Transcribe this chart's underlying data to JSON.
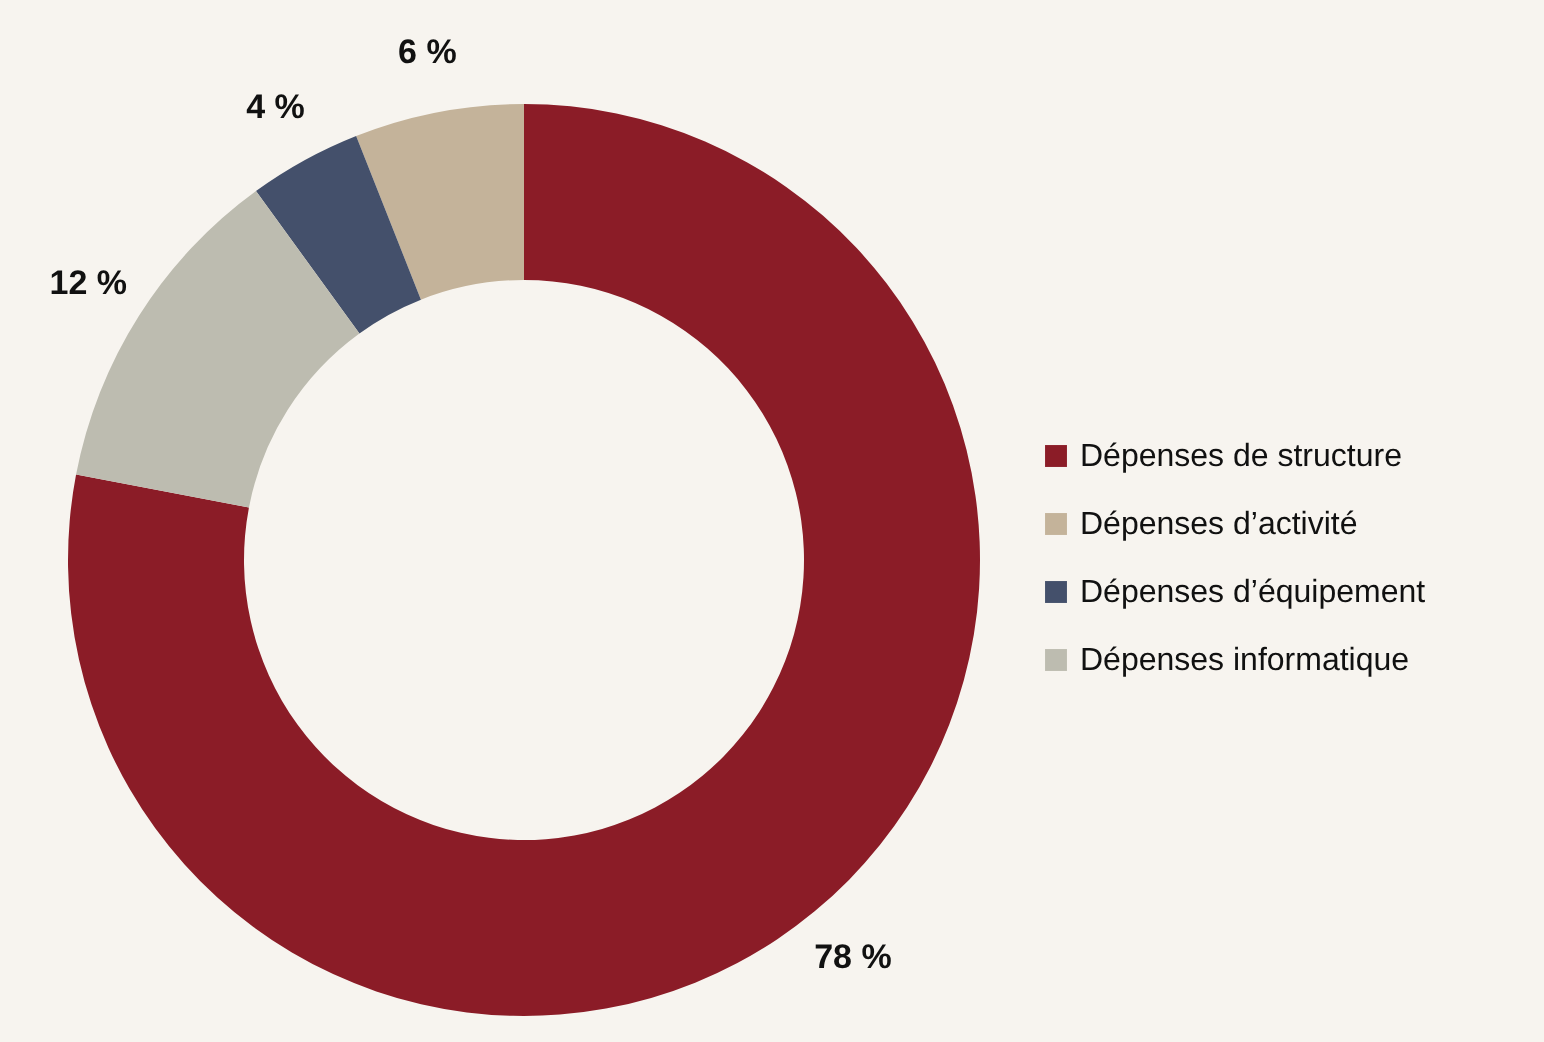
{
  "chart_data": {
    "type": "donut",
    "categories": [
      "Dépenses de structure",
      "Dépenses d’activité",
      "Dépenses d’équipement",
      "Dépenses informatique"
    ],
    "values": [
      78,
      6,
      4,
      12
    ],
    "colors": [
      "#8b1c27",
      "#c4b39a",
      "#44506b",
      "#bdbcb0"
    ],
    "value_labels": [
      "78 %",
      "6 %",
      "4 %",
      "12 %"
    ],
    "legend": "right"
  }
}
